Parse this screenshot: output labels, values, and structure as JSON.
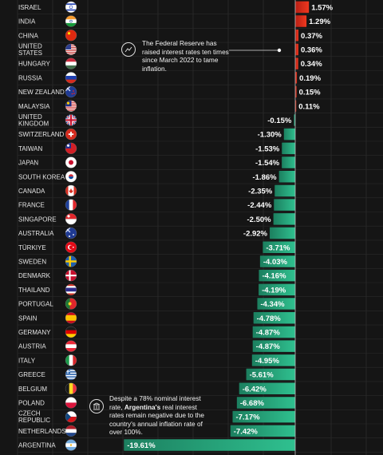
{
  "chart_data": {
    "type": "bar",
    "orientation": "horizontal",
    "categories": [
      "ISRAEL",
      "INDIA",
      "CHINA",
      "UNITED STATES",
      "HUNGARY",
      "RUSSIA",
      "NEW ZEALAND",
      "MALAYSIA",
      "UNITED KINGDOM",
      "SWITZERLAND",
      "TAIWAN",
      "JAPAN",
      "SOUTH KOREA",
      "CANADA",
      "FRANCE",
      "SINGAPORE",
      "AUSTRALIA",
      "TÜRKIYE",
      "SWEDEN",
      "DENMARK",
      "THAILAND",
      "PORTUGAL",
      "SPAIN",
      "GERMANY",
      "AUSTRIA",
      "ITALY",
      "GREECE",
      "BELGIUM",
      "POLAND",
      "CZECH REPUBLIC",
      "NETHERLANDS",
      "ARGENTINA"
    ],
    "values": [
      1.57,
      1.29,
      0.37,
      0.36,
      0.34,
      0.19,
      0.15,
      0.11,
      -0.15,
      -1.3,
      -1.53,
      -1.54,
      -1.86,
      -2.35,
      -2.44,
      -2.5,
      -2.92,
      -3.71,
      -4.03,
      -4.16,
      -4.19,
      -4.34,
      -4.78,
      -4.87,
      -4.87,
      -4.95,
      -5.61,
      -6.42,
      -6.68,
      -7.17,
      -7.42,
      -19.61
    ],
    "value_labels": [
      "1.57%",
      "1.29%",
      "0.37%",
      "0.36%",
      "0.34%",
      "0.19%",
      "0.15%",
      "0.11%",
      "-0.15%",
      "-1.30%",
      "-1.53%",
      "-1.54%",
      "-1.86%",
      "-2.35%",
      "-2.44%",
      "-2.50%",
      "-2.92%",
      "-3.71%",
      "-4.03%",
      "-4.16%",
      "-4.19%",
      "-4.34%",
      "-4.78%",
      "-4.87%",
      "-4.87%",
      "-4.95%",
      "-5.61%",
      "-6.42%",
      "-6.68%",
      "-7.17%",
      "-7.42%",
      "-19.61%"
    ],
    "positive_color": "#e0321c",
    "negative_color": "#1e9f75",
    "grid": true,
    "xlim": [
      -20,
      3
    ],
    "annotations": {
      "fed": "The Federal Reserve has raised interest rates ten times since March 2022 to tame inflation.",
      "argentina_prefix": "Despite a 78% nominal interest rate,",
      "argentina_bold": "Argentina's",
      "argentina_rest": "real interest rates remain negative due to the country's annual inflation rate of over 100%."
    }
  },
  "flags": [
    "israel",
    "india",
    "china",
    "united-states",
    "hungary",
    "russia",
    "new-zealand",
    "malaysia",
    "united-kingdom",
    "switzerland",
    "taiwan",
    "japan",
    "south-korea",
    "canada",
    "france",
    "singapore",
    "australia",
    "turkiye",
    "sweden",
    "denmark",
    "thailand",
    "portugal",
    "spain",
    "germany",
    "austria",
    "italy",
    "greece",
    "belgium",
    "poland",
    "czech-republic",
    "netherlands",
    "argentina"
  ]
}
